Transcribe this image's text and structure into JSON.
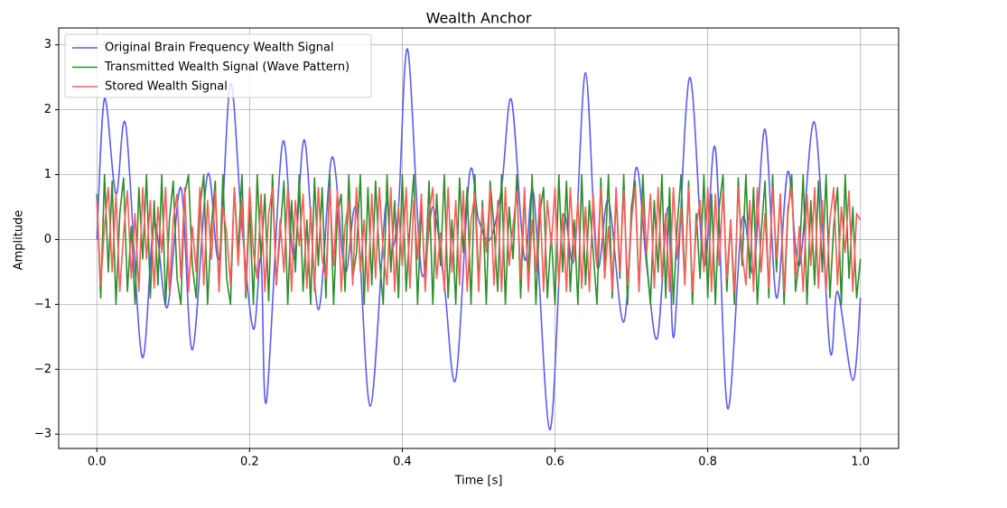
{
  "chart_data": {
    "type": "line",
    "title": "Wealth Anchor",
    "xlabel": "Time [s]",
    "ylabel": "Amplitude",
    "xlim": [
      -0.05,
      1.05
    ],
    "ylim": [
      -3.22,
      3.26
    ],
    "xticks": [
      {
        "value": 0,
        "label": "0.0"
      },
      {
        "value": 0.2,
        "label": "0.2"
      },
      {
        "value": 0.4,
        "label": "0.4"
      },
      {
        "value": 0.6,
        "label": "0.6"
      },
      {
        "value": 0.8,
        "label": "0.8"
      },
      {
        "value": 1,
        "label": "1.0"
      }
    ],
    "yticks": [
      {
        "value": -3,
        "label": "−3"
      },
      {
        "value": -2,
        "label": "−2"
      },
      {
        "value": -1,
        "label": "−1"
      },
      0,
      1,
      2,
      3
    ],
    "grid": true,
    "legend": "upper left",
    "x": [
      0,
      0.005,
      0.01,
      0.015,
      0.02,
      0.025,
      0.03,
      0.035,
      0.04,
      0.045,
      0.05,
      0.055,
      0.06,
      0.065,
      0.07,
      0.075,
      0.08,
      0.085,
      0.09,
      0.095,
      0.1,
      0.105,
      0.11,
      0.115,
      0.12,
      0.125,
      0.13,
      0.135,
      0.14,
      0.145,
      0.15,
      0.155,
      0.16,
      0.165,
      0.17,
      0.175,
      0.18,
      0.185,
      0.19,
      0.195,
      0.2,
      0.205,
      0.21,
      0.215,
      0.22,
      0.225,
      0.23,
      0.235,
      0.24,
      0.245,
      0.25,
      0.255,
      0.26,
      0.265,
      0.27,
      0.275,
      0.28,
      0.285,
      0.29,
      0.295,
      0.3,
      0.305,
      0.31,
      0.315,
      0.32,
      0.325,
      0.33,
      0.335,
      0.34,
      0.345,
      0.35,
      0.355,
      0.36,
      0.365,
      0.37,
      0.375,
      0.38,
      0.385,
      0.39,
      0.395,
      0.4,
      0.405,
      0.41,
      0.415,
      0.42,
      0.425,
      0.43,
      0.435,
      0.44,
      0.445,
      0.45,
      0.455,
      0.46,
      0.465,
      0.47,
      0.475,
      0.48,
      0.485,
      0.49,
      0.495,
      0.5,
      0.505,
      0.51,
      0.515,
      0.52,
      0.525,
      0.53,
      0.535,
      0.54,
      0.545,
      0.55,
      0.555,
      0.56,
      0.565,
      0.57,
      0.575,
      0.58,
      0.585,
      0.59,
      0.595,
      0.6,
      0.605,
      0.61,
      0.615,
      0.62,
      0.625,
      0.63,
      0.635,
      0.64,
      0.645,
      0.65,
      0.655,
      0.66,
      0.665,
      0.67,
      0.675,
      0.68,
      0.685,
      0.69,
      0.695,
      0.7,
      0.705,
      0.71,
      0.715,
      0.72,
      0.725,
      0.73,
      0.735,
      0.74,
      0.745,
      0.75,
      0.755,
      0.76,
      0.765,
      0.77,
      0.775,
      0.78,
      0.785,
      0.79,
      0.795,
      0.8,
      0.805,
      0.81,
      0.815,
      0.82,
      0.825,
      0.83,
      0.835,
      0.84,
      0.845,
      0.85,
      0.855,
      0.86,
      0.865,
      0.87,
      0.875,
      0.88,
      0.885,
      0.89,
      0.895,
      0.9,
      0.905,
      0.91,
      0.915,
      0.92,
      0.925,
      0.93,
      0.935,
      0.94,
      0.945,
      0.95,
      0.955,
      0.96,
      0.965,
      0.97,
      0.975,
      0.98,
      0.985,
      0.99,
      0.995,
      1
    ],
    "series": [
      {
        "name": "Original Brain Frequency Wealth Signal",
        "color": "#5c5cf0",
        "smooth": true,
        "x": [
          0,
          0.01,
          0.025,
          0.038,
          0.059,
          0.075,
          0.092,
          0.11,
          0.125,
          0.145,
          0.16,
          0.175,
          0.19,
          0.205,
          0.215,
          0.222,
          0.243,
          0.258,
          0.272,
          0.29,
          0.308,
          0.325,
          0.34,
          0.358,
          0.378,
          0.385,
          0.395,
          0.407,
          0.425,
          0.44,
          0.455,
          0.47,
          0.488,
          0.5,
          0.515,
          0.53,
          0.543,
          0.56,
          0.572,
          0.593,
          0.61,
          0.625,
          0.64,
          0.655,
          0.67,
          0.69,
          0.706,
          0.72,
          0.734,
          0.748,
          0.756,
          0.776,
          0.795,
          0.81,
          0.826,
          0.845,
          0.86,
          0.875,
          0.89,
          0.905,
          0.92,
          0.94,
          0.96,
          0.97,
          0.99,
          1
        ],
        "values": [
          0,
          2.17,
          0.7,
          1.75,
          -1.8,
          0.25,
          -1.05,
          0.8,
          -1.7,
          1.0,
          -0.3,
          2.4,
          0.2,
          -1.38,
          -0.3,
          -2.5,
          1.48,
          -0.3,
          1.53,
          -1.08,
          1.27,
          -0.5,
          0.45,
          -2.57,
          0.5,
          -0.2,
          0.5,
          2.93,
          -0.5,
          0.5,
          -0.7,
          -2.15,
          1.0,
          0.3,
          0.0,
          0.8,
          2.15,
          -0.3,
          0.7,
          -2.93,
          0.3,
          -0.3,
          2.57,
          -0.4,
          0.6,
          -1.27,
          1.1,
          -0.4,
          -1.52,
          0.5,
          -1.48,
          2.49,
          -0.4,
          1.4,
          -2.6,
          0.3,
          -0.5,
          1.7,
          -0.9,
          1.05,
          -0.4,
          1.8,
          -1.7,
          -0.8,
          -2.17,
          -0.9
        ]
      },
      {
        "name": "Transmitted Wealth Signal (Wave Pattern)",
        "color": "#2a8f2a",
        "smooth": false,
        "values": [
          0.7,
          -0.9,
          1.0,
          -0.5,
          0.9,
          -1.0,
          0.4,
          0.95,
          -0.8,
          0.2,
          -1.0,
          0.8,
          -0.3,
          1.0,
          -0.9,
          0.6,
          -0.7,
          1.0,
          -1.0,
          0.3,
          0.9,
          -0.6,
          -1.0,
          0.7,
          1.0,
          -0.4,
          -0.9,
          0.5,
          1.0,
          -1.0,
          0.2,
          0.9,
          -0.8,
          1.0,
          -0.6,
          -1.0,
          0.8,
          -0.2,
          1.0,
          -0.9,
          0.5,
          -1.0,
          1.0,
          -0.3,
          0.7,
          -0.95,
          1.0,
          -0.7,
          0.1,
          0.9,
          -1.0,
          0.6,
          -0.5,
          1.0,
          -0.8,
          0.3,
          -1.0,
          0.95,
          -0.4,
          0.8,
          -0.9,
          1.0,
          -1.0,
          0.4,
          0.7,
          -0.8,
          1.0,
          -0.6,
          -0.2,
          1.0,
          -1.0,
          0.8,
          -0.7,
          0.9,
          -0.3,
          -1.0,
          1.0,
          -0.5,
          0.6,
          -0.9,
          1.0,
          -0.8,
          0.2,
          1.0,
          -1.0,
          0.5,
          -0.6,
          0.9,
          -1.0,
          0.7,
          -0.4,
          1.0,
          -0.9,
          0.3,
          -1.0,
          0.95,
          -0.2,
          0.8,
          -1.0,
          1.0,
          -0.7,
          0.6,
          -1.0,
          0.9,
          0.2,
          -0.8,
          1.0,
          -1.0,
          0.5,
          -0.3,
          1.0,
          -0.9,
          0.7,
          -0.6,
          1.0,
          -1.0,
          0.4,
          0.8,
          -0.9,
          0.1,
          -1.0,
          1.0,
          -0.5,
          0.9,
          -0.8,
          0.3,
          -1.0,
          1.0,
          -0.7,
          0.6,
          -0.2,
          -1.0,
          0.95,
          -0.4,
          1.0,
          -0.9,
          0.7,
          -0.6,
          1.0,
          -1.0,
          0.5,
          0.9,
          -0.8,
          1.0,
          -0.3,
          -1.0,
          0.6,
          -0.5,
          1.0,
          -0.9,
          0.8,
          -1.0,
          0.2,
          1.0,
          -0.7,
          0.9,
          -1.0,
          0.4,
          -0.6,
          1.0,
          -0.9,
          0.7,
          -1.0,
          0.5,
          1.0,
          -0.8,
          0.3,
          -1.0,
          0.95,
          -0.4,
          1.0,
          -0.6,
          0.8,
          -1.0,
          0.1,
          0.9,
          -0.9,
          1.0,
          -0.5,
          0.7,
          -1.0,
          0.4,
          1.0,
          -0.8,
          -0.3,
          1.0,
          -1.0,
          0.6,
          -0.7,
          0.9,
          -0.5,
          1.0,
          -0.9,
          0.2,
          0.8,
          -1.0,
          1.0,
          -0.6,
          0.5,
          -0.9,
          -0.3
        ]
      },
      {
        "name": "Stored Wealth Signal",
        "color": "#ff5a5a",
        "smooth": false,
        "values": [
          0.6,
          -0.7,
          0.2,
          0.8,
          -0.5,
          0.7,
          -0.8,
          0.1,
          0.75,
          -0.6,
          0.4,
          -0.8,
          0.8,
          -0.3,
          0.6,
          -0.75,
          0.5,
          -0.2,
          0.8,
          -0.8,
          0.3,
          0.7,
          -0.6,
          0.8,
          -0.8,
          0.2,
          -0.5,
          0.8,
          -0.7,
          0.6,
          -0.3,
          0.75,
          -0.8,
          0.5,
          0.1,
          -0.7,
          0.8,
          -0.4,
          0.6,
          -0.8,
          0.8,
          -0.2,
          -0.6,
          0.7,
          -0.8,
          0.4,
          0.8,
          -0.7,
          0.3,
          -0.5,
          0.8,
          -0.8,
          0.6,
          -0.1,
          0.7,
          -0.75,
          0.5,
          -0.8,
          0.8,
          -0.3,
          -0.6,
          0.8,
          -0.4,
          0.75,
          -0.8,
          0.2,
          0.6,
          -0.7,
          0.8,
          -0.5,
          0.3,
          -0.8,
          0.7,
          -0.6,
          0.8,
          -0.2,
          -0.7,
          0.8,
          -0.8,
          0.5,
          -0.4,
          0.8,
          -0.75,
          0.6,
          -0.3,
          0.7,
          -0.8,
          0.4,
          0.8,
          -0.6,
          0.1,
          -0.8,
          0.8,
          -0.5,
          0.6,
          -0.7,
          0.75,
          -0.8,
          0.3,
          0.7,
          -0.8,
          0.5,
          -0.2,
          0.8,
          -0.7,
          0.6,
          -0.8,
          0.8,
          -0.4,
          0.2,
          0.75,
          -0.6,
          0.8,
          -0.8,
          0.3,
          -0.5,
          0.7,
          -0.8,
          0.6,
          -0.1,
          0.8,
          -0.7,
          0.4,
          -0.8,
          0.8,
          -0.3,
          0.6,
          -0.75,
          0.5,
          -0.8,
          0.7,
          -0.4,
          0.8,
          -0.6,
          0.2,
          -0.8,
          0.8,
          -0.5,
          0.75,
          -0.7,
          0.3,
          0.8,
          -0.8,
          0.6,
          -0.2,
          0.7,
          -0.75,
          0.8,
          -0.6,
          0.4,
          -0.8,
          0.8,
          -0.3,
          0.5,
          -0.7,
          0.8,
          -0.8,
          0.2,
          0.6,
          -0.5,
          0.8,
          -0.8,
          0.7,
          -0.4,
          0.75,
          -0.6,
          0.3,
          -0.8,
          0.8,
          -0.2,
          -0.7,
          0.6,
          -0.8,
          0.8,
          -0.5,
          0.4,
          -0.75,
          0.8,
          -0.3,
          0.7,
          -0.8,
          0.5,
          0.8,
          -0.6,
          0.2,
          -0.8,
          0.7,
          -0.4,
          0.8,
          -0.75,
          0.6,
          -0.8,
          0.3,
          0.8,
          -0.7,
          0.5,
          -0.2,
          0.75,
          -0.8,
          0.4,
          0.3
        ]
      }
    ]
  }
}
